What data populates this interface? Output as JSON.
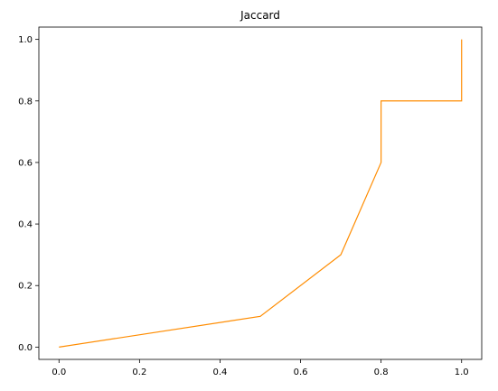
{
  "chart_data": {
    "type": "line",
    "title": "Jaccard",
    "xlabel": "",
    "ylabel": "",
    "xlim": [
      -0.05,
      1.05
    ],
    "ylim": [
      -0.04,
      1.04
    ],
    "xticks": [
      0.0,
      0.2,
      0.4,
      0.6,
      0.8,
      1.0
    ],
    "xtick_labels": [
      "0.0",
      "0.2",
      "0.4",
      "0.6",
      "0.8",
      "1.0"
    ],
    "yticks": [
      0.0,
      0.2,
      0.4,
      0.6,
      0.8,
      1.0
    ],
    "ytick_labels": [
      "0.0",
      "0.2",
      "0.4",
      "0.6",
      "0.8",
      "1.0"
    ],
    "grid": false,
    "series": [
      {
        "color": "#ff8c00",
        "x": [
          0.0,
          0.5,
          0.7,
          0.8,
          0.8,
          1.0,
          1.0
        ],
        "y": [
          0.0,
          0.1,
          0.3,
          0.6,
          0.8,
          0.8,
          1.0
        ]
      }
    ]
  }
}
